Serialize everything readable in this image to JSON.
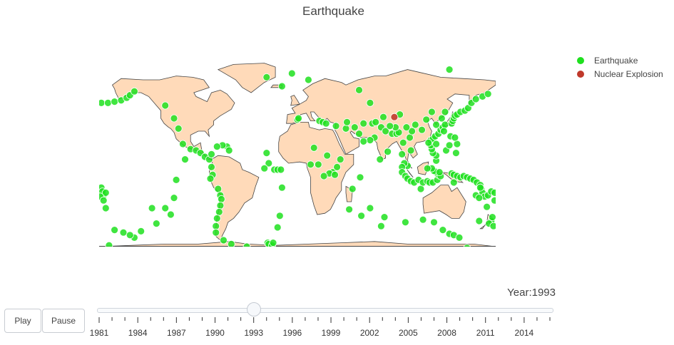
{
  "chart_data": {
    "type": "scatter",
    "title": "Earthquake",
    "subtype": "scatter-geo",
    "projection": "equirectangular",
    "land_color": "#ffdab9",
    "legend": {
      "position": "top-right"
    },
    "series": [
      {
        "name": "Earthquake",
        "color": "#1ee01e",
        "points": [
          [
            -178,
            52
          ],
          [
            -172,
            52
          ],
          [
            -166,
            53
          ],
          [
            -160,
            54
          ],
          [
            -155,
            56
          ],
          [
            -152,
            58
          ],
          [
            -148,
            61
          ],
          [
            -120,
            50
          ],
          [
            -112,
            40
          ],
          [
            -108,
            32
          ],
          [
            -104,
            20
          ],
          [
            -97,
            16
          ],
          [
            -92,
            15
          ],
          [
            -88,
            13
          ],
          [
            -84,
            10
          ],
          [
            -80,
            8
          ],
          [
            -78,
            2
          ],
          [
            -77,
            -4
          ],
          [
            -79,
            -7
          ],
          [
            -72,
            -15
          ],
          [
            -70,
            -20
          ],
          [
            -69,
            -23
          ],
          [
            -70,
            -28
          ],
          [
            -71,
            -33
          ],
          [
            -73,
            -38
          ],
          [
            -74,
            -44
          ],
          [
            -74,
            -49
          ],
          [
            -67,
            -55
          ],
          [
            -60,
            -58
          ],
          [
            -46,
            -60
          ],
          [
            -27,
            -57
          ],
          [
            -26,
            -58
          ],
          [
            -23,
            -59
          ],
          [
            -22,
            -57
          ],
          [
            -18,
            -45
          ],
          [
            -16,
            -36
          ],
          [
            -14,
            -14
          ],
          [
            -26,
            5
          ],
          [
            -30,
            1
          ],
          [
            -21,
            0
          ],
          [
            -18,
            0
          ],
          [
            -15,
            0
          ],
          [
            -28,
            13
          ],
          [
            -64,
            18
          ],
          [
            -68,
            19
          ],
          [
            -73,
            18
          ],
          [
            -62,
            15
          ],
          [
            -78,
            12
          ],
          [
            -112,
            -22
          ],
          [
            -120,
            -30
          ],
          [
            -115,
            -35
          ],
          [
            -128,
            -42
          ],
          [
            -142,
            -48
          ],
          [
            -148,
            -53
          ],
          [
            -152,
            -51
          ],
          [
            -158,
            -49
          ],
          [
            -166,
            -47
          ],
          [
            -132,
            -30
          ],
          [
            -110,
            -8
          ],
          [
            -102,
            8
          ],
          [
            -178,
            -14
          ],
          [
            -176,
            -20
          ],
          [
            -177,
            -17
          ],
          [
            -174,
            -18
          ],
          [
            -179,
            -21
          ],
          [
            -176,
            -24
          ],
          [
            -174,
            -30
          ],
          [
            -171,
            -59
          ],
          [
            -5,
            75
          ],
          [
            10,
            70
          ],
          [
            -14,
            65
          ],
          [
            -28,
            72
          ],
          [
            138,
            78
          ],
          [
            0,
            39
          ],
          [
            1,
            40
          ],
          [
            20,
            38
          ],
          [
            23,
            37
          ],
          [
            26,
            36
          ],
          [
            35,
            34
          ],
          [
            44,
            32
          ],
          [
            45,
            37
          ],
          [
            52,
            33
          ],
          [
            56,
            28
          ],
          [
            60,
            36
          ],
          [
            68,
            36
          ],
          [
            71,
            37
          ],
          [
            76,
            33
          ],
          [
            80,
            30
          ],
          [
            86,
            28
          ],
          [
            90,
            28
          ],
          [
            70,
            25
          ],
          [
            66,
            23
          ],
          [
            60,
            22
          ],
          [
            57,
            -6
          ],
          [
            50,
            -15
          ],
          [
            47,
            -31
          ],
          [
            58,
            -36
          ],
          [
            66,
            -30
          ],
          [
            79,
            -37
          ],
          [
            76,
            -44
          ],
          [
            98,
            -41
          ],
          [
            114,
            -39
          ],
          [
            124,
            -41
          ],
          [
            132,
            -47
          ],
          [
            138,
            -50
          ],
          [
            142,
            -51
          ],
          [
            147,
            -53
          ],
          [
            154,
            -61
          ],
          [
            32,
            -2
          ],
          [
            36,
            2
          ],
          [
            39,
            8
          ],
          [
            29,
            -3
          ],
          [
            24,
            -5
          ],
          [
            12,
            4
          ],
          [
            15,
            17
          ],
          [
            27,
            11
          ],
          [
            19,
            4
          ],
          [
            34,
            -4
          ],
          [
            112,
            -15
          ],
          [
            100,
            3
          ],
          [
            97,
            5
          ],
          [
            95,
            2
          ],
          [
            95,
            12
          ],
          [
            95,
            -2
          ],
          [
            98,
            -5
          ],
          [
            100,
            -7
          ],
          [
            103,
            -9
          ],
          [
            106,
            -10
          ],
          [
            110,
            -8
          ],
          [
            114,
            -10
          ],
          [
            118,
            -9
          ],
          [
            120,
            -10
          ],
          [
            123,
            -10
          ],
          [
            127,
            -8
          ],
          [
            128,
            -4
          ],
          [
            126,
            -2
          ],
          [
            124,
            -1
          ],
          [
            122,
            1
          ],
          [
            126,
            7
          ],
          [
            126,
            11
          ],
          [
            123,
            13
          ],
          [
            122,
            16
          ],
          [
            121,
            19
          ],
          [
            121,
            23
          ],
          [
            123,
            24
          ],
          [
            125,
            26
          ],
          [
            128,
            28
          ],
          [
            130,
            31
          ],
          [
            132,
            33
          ],
          [
            134,
            35
          ],
          [
            140,
            36
          ],
          [
            141,
            38
          ],
          [
            142,
            40
          ],
          [
            143,
            42
          ],
          [
            145,
            43
          ],
          [
            148,
            45
          ],
          [
            152,
            46
          ],
          [
            155,
            48
          ],
          [
            158,
            52
          ],
          [
            162,
            55
          ],
          [
            168,
            57
          ],
          [
            173,
            59
          ],
          [
            102,
            25
          ],
          [
            104,
            30
          ],
          [
            99,
            33
          ],
          [
            92,
            29
          ],
          [
            96,
            21
          ],
          [
            130,
            -5
          ],
          [
            140,
            -3
          ],
          [
            142,
            -4
          ],
          [
            145,
            -5
          ],
          [
            148,
            -6
          ],
          [
            151,
            -5
          ],
          [
            154,
            -6
          ],
          [
            157,
            -7
          ],
          [
            160,
            -8
          ],
          [
            163,
            -10
          ],
          [
            166,
            -12
          ],
          [
            167,
            -15
          ],
          [
            168,
            -18
          ],
          [
            170,
            -21
          ],
          [
            173,
            -20
          ],
          [
            176,
            -17
          ],
          [
            179,
            -24
          ],
          [
            176,
            -40
          ],
          [
            177,
            -37
          ],
          [
            174,
            -42
          ],
          [
            178,
            -44
          ],
          [
            172,
            -29
          ],
          [
            165,
            -40
          ],
          [
            142,
            -10
          ],
          [
            118,
            1
          ],
          [
            126,
            20
          ],
          [
            129,
            -2
          ],
          [
            103,
            15
          ],
          [
            139,
            26
          ],
          [
            179,
            -18
          ],
          [
            162,
            -20
          ],
          [
            165,
            -22
          ],
          [
            166,
            -14
          ],
          [
            135,
            15
          ],
          [
            138,
            19
          ],
          [
            144,
            13
          ],
          [
            145,
            20
          ],
          [
            143,
            25
          ],
          [
            133,
            30
          ],
          [
            126,
            35
          ],
          [
            131,
            40
          ],
          [
            134,
            45
          ],
          [
            122,
            45
          ],
          [
            117,
            39
          ],
          [
            107,
            35
          ],
          [
            113,
            31
          ],
          [
            89,
            33
          ],
          [
            93,
            43
          ],
          [
            78,
            41
          ],
          [
            66,
            52
          ],
          [
            56,
            62
          ],
          [
            84,
            34
          ],
          [
            75,
            8
          ],
          [
            82,
            14
          ],
          [
            119,
            21
          ]
        ]
      },
      {
        "name": "Nuclear Explosion",
        "color": "#c0392b",
        "points": [
          [
            88,
            41
          ]
        ]
      }
    ],
    "year": 1993
  },
  "animation": {
    "play_label": "Play",
    "pause_label": "Pause",
    "current_value_label": "Year:1993",
    "current_year": 1993,
    "year_start": 1981,
    "year_end": 2016,
    "tick_labels": [
      "1981",
      "1984",
      "1987",
      "1990",
      "1993",
      "1996",
      "1999",
      "2002",
      "2005",
      "2008",
      "2011",
      "2014"
    ]
  }
}
